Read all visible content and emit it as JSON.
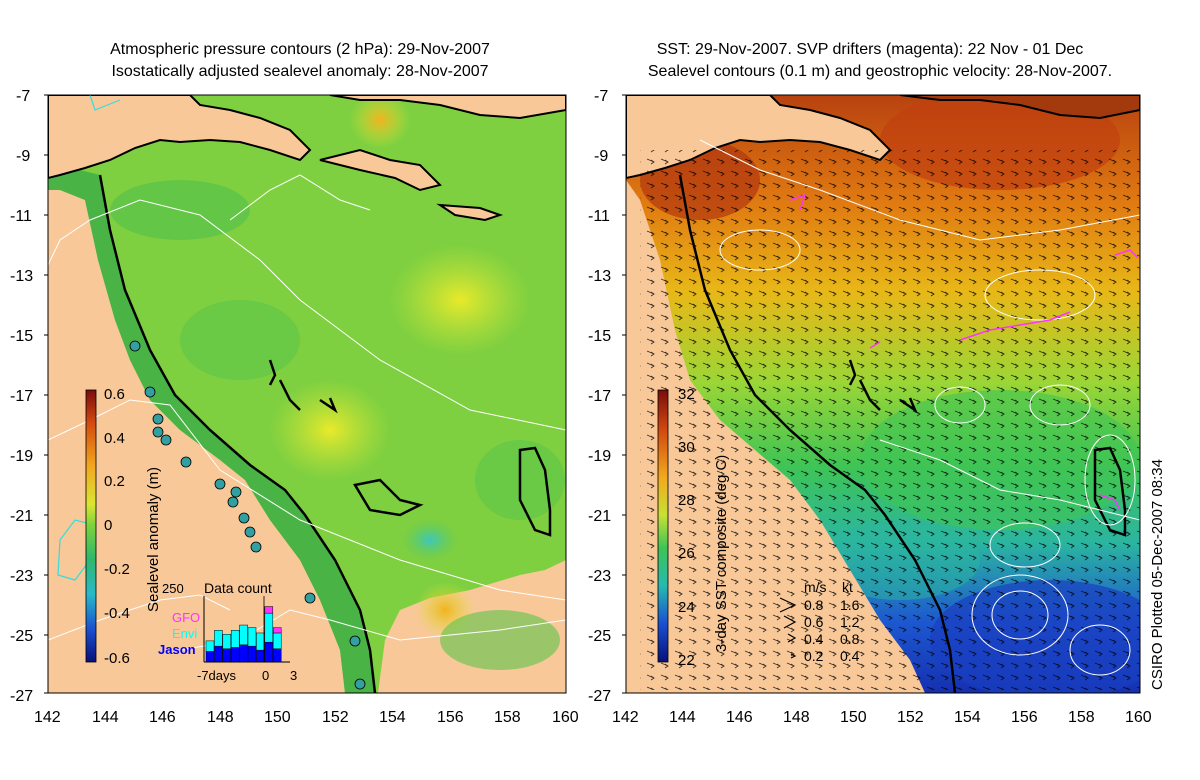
{
  "left": {
    "title_line1": "Atmospheric pressure contours (2 hPa): 29-Nov-2007",
    "title_line2": "Isostatically adjusted sealevel anomaly: 28-Nov-2007",
    "colorbar_label": "Sealevel anomaly (m)",
    "colorbar_ticks": [
      "0.6",
      "0.4",
      "0.2",
      "0",
      "-0.2",
      "-0.4",
      "-0.6"
    ],
    "inset": {
      "title": "Data count",
      "ymax_label": "250",
      "legend": [
        "GFO",
        "Envi",
        "Jason"
      ],
      "legend_colors": [
        "#ff33ff",
        "#00ffff",
        "#0000ff"
      ],
      "xlabel_left": "-7days",
      "xlabel_mid": "0",
      "xlabel_right": "3",
      "counts": [
        {
          "jason": 40,
          "envi": 40,
          "gfo": 0
        },
        {
          "jason": 60,
          "envi": 60,
          "gfo": 0
        },
        {
          "jason": 50,
          "envi": 55,
          "gfo": 0
        },
        {
          "jason": 55,
          "envi": 65,
          "gfo": 0
        },
        {
          "jason": 65,
          "envi": 75,
          "gfo": 0
        },
        {
          "jason": 60,
          "envi": 70,
          "gfo": 0
        },
        {
          "jason": 45,
          "envi": 65,
          "gfo": 0
        },
        {
          "jason": 75,
          "envi": 110,
          "gfo": 25
        },
        {
          "jason": 50,
          "envi": 60,
          "gfo": 20
        },
        {
          "jason": 0,
          "envi": 0,
          "gfo": 0
        }
      ]
    }
  },
  "right": {
    "title_line1": "SST: 29-Nov-2007. SVP drifters (magenta): 22 Nov - 01 Dec",
    "title_line2": "Sealevel contours (0.1 m) and geostrophic velocity: 28-Nov-2007.",
    "colorbar_label": "3-day SST composite (deg C)",
    "colorbar_ticks": [
      "32",
      "30",
      "28",
      "26",
      "24",
      "22"
    ],
    "velocity_legend": {
      "header_ms": "m/s",
      "header_kt": "kt",
      "rows": [
        {
          "ms": "0.8",
          "kt": "1.6"
        },
        {
          "ms": "0.6",
          "kt": "1.2"
        },
        {
          "ms": "0.4",
          "kt": "0.8"
        },
        {
          "ms": "0.2",
          "kt": "0.4"
        }
      ]
    },
    "plotted_label": "CSIRO Plotted 05-Dec-2007 08:34"
  },
  "axes": {
    "lat_ticks": [
      "-7",
      "-9",
      "-11",
      "-13",
      "-15",
      "-17",
      "-19",
      "-21",
      "-23",
      "-25",
      "-27"
    ],
    "lon_ticks": [
      "142",
      "144",
      "146",
      "148",
      "150",
      "152",
      "154",
      "156",
      "158",
      "160"
    ]
  }
}
